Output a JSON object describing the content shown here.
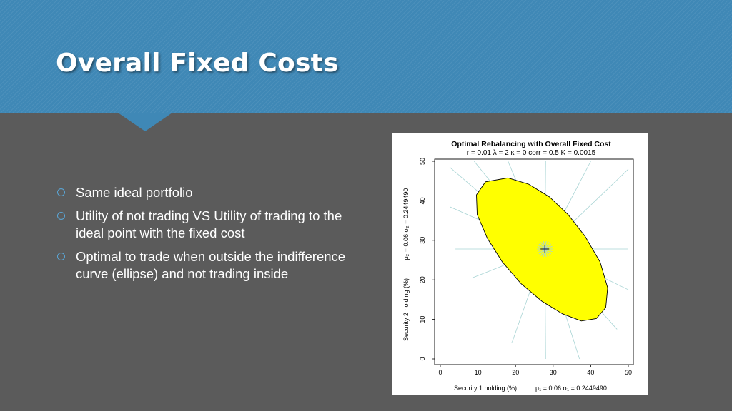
{
  "slide": {
    "title": "Overall Fixed Costs",
    "bullets": [
      "Same ideal portfolio",
      "Utility of not trading VS Utility of trading to the ideal point with the fixed cost",
      "Optimal to trade when outside the indifference curve (ellipse) and not trading inside"
    ]
  },
  "colors": {
    "header": "#3f88b6",
    "background": "#5b5b5b",
    "bullet_marker": "#5aa6d6",
    "ellipse_fill": "#ffff00",
    "ray": "#a8d4d4"
  },
  "chart_data": {
    "type": "scatter",
    "title": "Optimal Rebalancing with Overall Fixed Cost",
    "subtitle": "r = 0.01   λ = 2   κ = 0   corr = 0.5   K = 0.0015",
    "xlabel": "Security 1 holding (%)",
    "xlabel_params": "μ₁ = 0.06   σ₁ = 0.2449490",
    "ylabel": "Security 2 holding (%)",
    "ylabel_params": "μ₂ = 0.06   σ₂ = 0.2449490",
    "xlim": [
      0,
      50
    ],
    "ylim": [
      0,
      50
    ],
    "xticks": [
      0,
      10,
      20,
      30,
      40,
      50
    ],
    "yticks": [
      0,
      10,
      20,
      30,
      40,
      50
    ],
    "ideal_point": {
      "x": 27.8,
      "y": 27.8
    },
    "no_trade_region": {
      "shape": "ellipse",
      "boundary": [
        [
          18.0,
          45.8
        ],
        [
          23.5,
          44.2
        ],
        [
          29.0,
          41.0
        ],
        [
          34.0,
          36.5
        ],
        [
          38.5,
          31.0
        ],
        [
          42.5,
          24.5
        ],
        [
          44.5,
          18.0
        ],
        [
          44.0,
          13.0
        ],
        [
          41.5,
          10.2
        ],
        [
          37.5,
          9.6
        ],
        [
          32.5,
          11.4
        ],
        [
          27.0,
          14.6
        ],
        [
          21.5,
          19.0
        ],
        [
          16.5,
          24.5
        ],
        [
          12.5,
          30.5
        ],
        [
          9.8,
          36.5
        ],
        [
          9.6,
          41.5
        ],
        [
          12.0,
          44.8
        ]
      ]
    },
    "trade_rays_start": [
      [
        2.5,
        48.5
      ],
      [
        9.0,
        50.0
      ],
      [
        18.0,
        50.0
      ],
      [
        28.0,
        50.0
      ],
      [
        40.0,
        50.0
      ],
      [
        50.0,
        48.0
      ],
      [
        50.0,
        27.8
      ],
      [
        50.0,
        17.5
      ],
      [
        47.0,
        7.5
      ],
      [
        37.0,
        0.0
      ],
      [
        28.0,
        0.0
      ],
      [
        19.0,
        4.0
      ],
      [
        8.5,
        20.5
      ],
      [
        4.0,
        27.8
      ],
      [
        2.5,
        38.5
      ]
    ],
    "grid": false,
    "legend": "none"
  }
}
